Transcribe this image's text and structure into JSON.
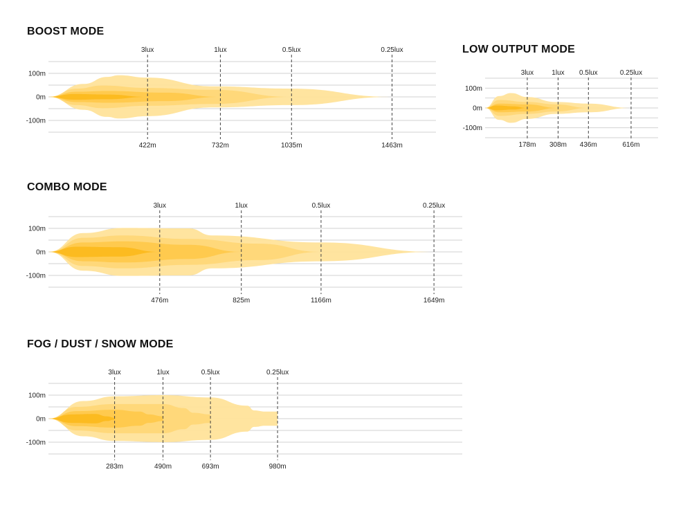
{
  "colors": {
    "grid": "#d2d2d2",
    "marker": "#444444",
    "beam_outer": "#ffe39a",
    "beam_mid": "#ffd46e",
    "beam_inner": "#ffc540",
    "beam_core": "#fbb612"
  },
  "chart_data": [
    {
      "type": "area",
      "title": "BOOST MODE",
      "y_ticks": [
        {
          "value": 100,
          "label": "100m"
        },
        {
          "value": 0,
          "label": "0m"
        },
        {
          "value": -100,
          "label": "-100m"
        }
      ],
      "xlim": [
        0,
        1650
      ],
      "ylim": [
        -150,
        150
      ],
      "markers": [
        {
          "lux": "3lux",
          "distance": 422,
          "label": "422m"
        },
        {
          "lux": "1lux",
          "distance": 732,
          "label": "732m"
        },
        {
          "lux": "0.5lux",
          "distance": 1035,
          "label": "1035m"
        },
        {
          "lux": "0.25lux",
          "distance": 1463,
          "label": "1463m"
        }
      ],
      "beams": [
        {
          "reach": 1463,
          "width": [
            [
              0,
              0
            ],
            [
              150,
              55
            ],
            [
              250,
              85
            ],
            [
              300,
              92
            ],
            [
              420,
              82
            ],
            [
              700,
              45
            ],
            [
              1035,
              35
            ],
            [
              1463,
              0
            ]
          ]
        },
        {
          "reach": 1035,
          "width": [
            [
              0,
              0
            ],
            [
              120,
              35
            ],
            [
              230,
              48
            ],
            [
              420,
              38
            ],
            [
              700,
              30
            ],
            [
              1035,
              0
            ]
          ]
        },
        {
          "reach": 732,
          "width": [
            [
              0,
              0
            ],
            [
              120,
              22
            ],
            [
              250,
              25
            ],
            [
              500,
              18
            ],
            [
              732,
              0
            ]
          ]
        },
        {
          "reach": 422,
          "width": [
            [
              0,
              0
            ],
            [
              110,
              12
            ],
            [
              250,
              10
            ],
            [
              422,
              0
            ]
          ]
        }
      ]
    },
    {
      "type": "area",
      "title": "LOW OUTPUT MODE",
      "y_ticks": [
        {
          "value": 100,
          "label": "100m"
        },
        {
          "value": 0,
          "label": "0m"
        },
        {
          "value": -100,
          "label": "-100m"
        }
      ],
      "xlim": [
        0,
        730
      ],
      "ylim": [
        -150,
        150
      ],
      "markers": [
        {
          "lux": "3lux",
          "distance": 178,
          "label": "178m"
        },
        {
          "lux": "1lux",
          "distance": 308,
          "label": "308m"
        },
        {
          "lux": "0.5lux",
          "distance": 436,
          "label": "436m"
        },
        {
          "lux": "0.25lux",
          "distance": 616,
          "label": "616m"
        }
      ],
      "beams": [
        {
          "reach": 616,
          "width": [
            [
              0,
              0
            ],
            [
              60,
              60
            ],
            [
              110,
              75
            ],
            [
              178,
              55
            ],
            [
              300,
              30
            ],
            [
              436,
              22
            ],
            [
              616,
              0
            ]
          ]
        },
        {
          "reach": 436,
          "width": [
            [
              0,
              0
            ],
            [
              60,
              40
            ],
            [
              178,
              30
            ],
            [
              300,
              18
            ],
            [
              436,
              0
            ]
          ]
        },
        {
          "reach": 308,
          "width": [
            [
              0,
              0
            ],
            [
              60,
              22
            ],
            [
              178,
              18
            ],
            [
              308,
              0
            ]
          ]
        },
        {
          "reach": 178,
          "width": [
            [
              0,
              0
            ],
            [
              50,
              12
            ],
            [
              120,
              8
            ],
            [
              178,
              0
            ]
          ]
        }
      ]
    },
    {
      "type": "area",
      "title": "COMBO MODE",
      "y_ticks": [
        {
          "value": 100,
          "label": "100m"
        },
        {
          "value": 0,
          "label": "0m"
        },
        {
          "value": -100,
          "label": "-100m"
        }
      ],
      "xlim": [
        0,
        1770
      ],
      "ylim": [
        -150,
        150
      ],
      "markers": [
        {
          "lux": "3lux",
          "distance": 476,
          "label": "476m"
        },
        {
          "lux": "1lux",
          "distance": 825,
          "label": "825m"
        },
        {
          "lux": "0.5lux",
          "distance": 1166,
          "label": "1166m"
        },
        {
          "lux": "0.25lux",
          "distance": 1649,
          "label": "1649m"
        }
      ],
      "beams": [
        {
          "reach": 1649,
          "width": [
            [
              0,
              0
            ],
            [
              150,
              80
            ],
            [
              320,
              102
            ],
            [
              600,
              100
            ],
            [
              700,
              70
            ],
            [
              1166,
              40
            ],
            [
              1649,
              0
            ]
          ]
        },
        {
          "reach": 1166,
          "width": [
            [
              0,
              0
            ],
            [
              150,
              60
            ],
            [
              320,
              70
            ],
            [
              600,
              55
            ],
            [
              900,
              35
            ],
            [
              1166,
              0
            ]
          ]
        },
        {
          "reach": 825,
          "width": [
            [
              0,
              0
            ],
            [
              150,
              40
            ],
            [
              320,
              45
            ],
            [
              600,
              30
            ],
            [
              825,
              0
            ]
          ]
        },
        {
          "reach": 476,
          "width": [
            [
              0,
              0
            ],
            [
              120,
              22
            ],
            [
              300,
              20
            ],
            [
              476,
              0
            ]
          ]
        }
      ]
    },
    {
      "type": "area",
      "title": "FOG / DUST / SNOW MODE",
      "y_ticks": [
        {
          "value": 100,
          "label": "100m"
        },
        {
          "value": 0,
          "label": "0m"
        },
        {
          "value": -100,
          "label": "-100m"
        }
      ],
      "xlim": [
        0,
        1770
      ],
      "ylim": [
        -150,
        150
      ],
      "markers": [
        {
          "lux": "3lux",
          "distance": 283,
          "label": "283m"
        },
        {
          "lux": "1lux",
          "distance": 490,
          "label": "490m"
        },
        {
          "lux": "0.5lux",
          "distance": 693,
          "label": "693m"
        },
        {
          "lux": "0.25lux",
          "distance": 980,
          "label": "980m"
        }
      ],
      "beams": [
        {
          "reach": 980,
          "width": [
            [
              0,
              0
            ],
            [
              150,
              75
            ],
            [
              283,
              95
            ],
            [
              490,
              100
            ],
            [
              693,
              90
            ],
            [
              850,
              55
            ],
            [
              880,
              35
            ],
            [
              930,
              30
            ],
            [
              980,
              30
            ]
          ]
        },
        {
          "reach": 693,
          "width": [
            [
              0,
              0
            ],
            [
              120,
              50
            ],
            [
              283,
              62
            ],
            [
              490,
              62
            ],
            [
              580,
              45
            ],
            [
              620,
              25
            ],
            [
              693,
              18
            ]
          ]
        },
        {
          "reach": 490,
          "width": [
            [
              0,
              0
            ],
            [
              120,
              32
            ],
            [
              283,
              38
            ],
            [
              390,
              30
            ],
            [
              430,
              18
            ],
            [
              490,
              10
            ]
          ]
        },
        {
          "reach": 283,
          "width": [
            [
              0,
              0
            ],
            [
              100,
              18
            ],
            [
              200,
              20
            ],
            [
              250,
              10
            ],
            [
              283,
              4
            ]
          ]
        }
      ]
    }
  ]
}
